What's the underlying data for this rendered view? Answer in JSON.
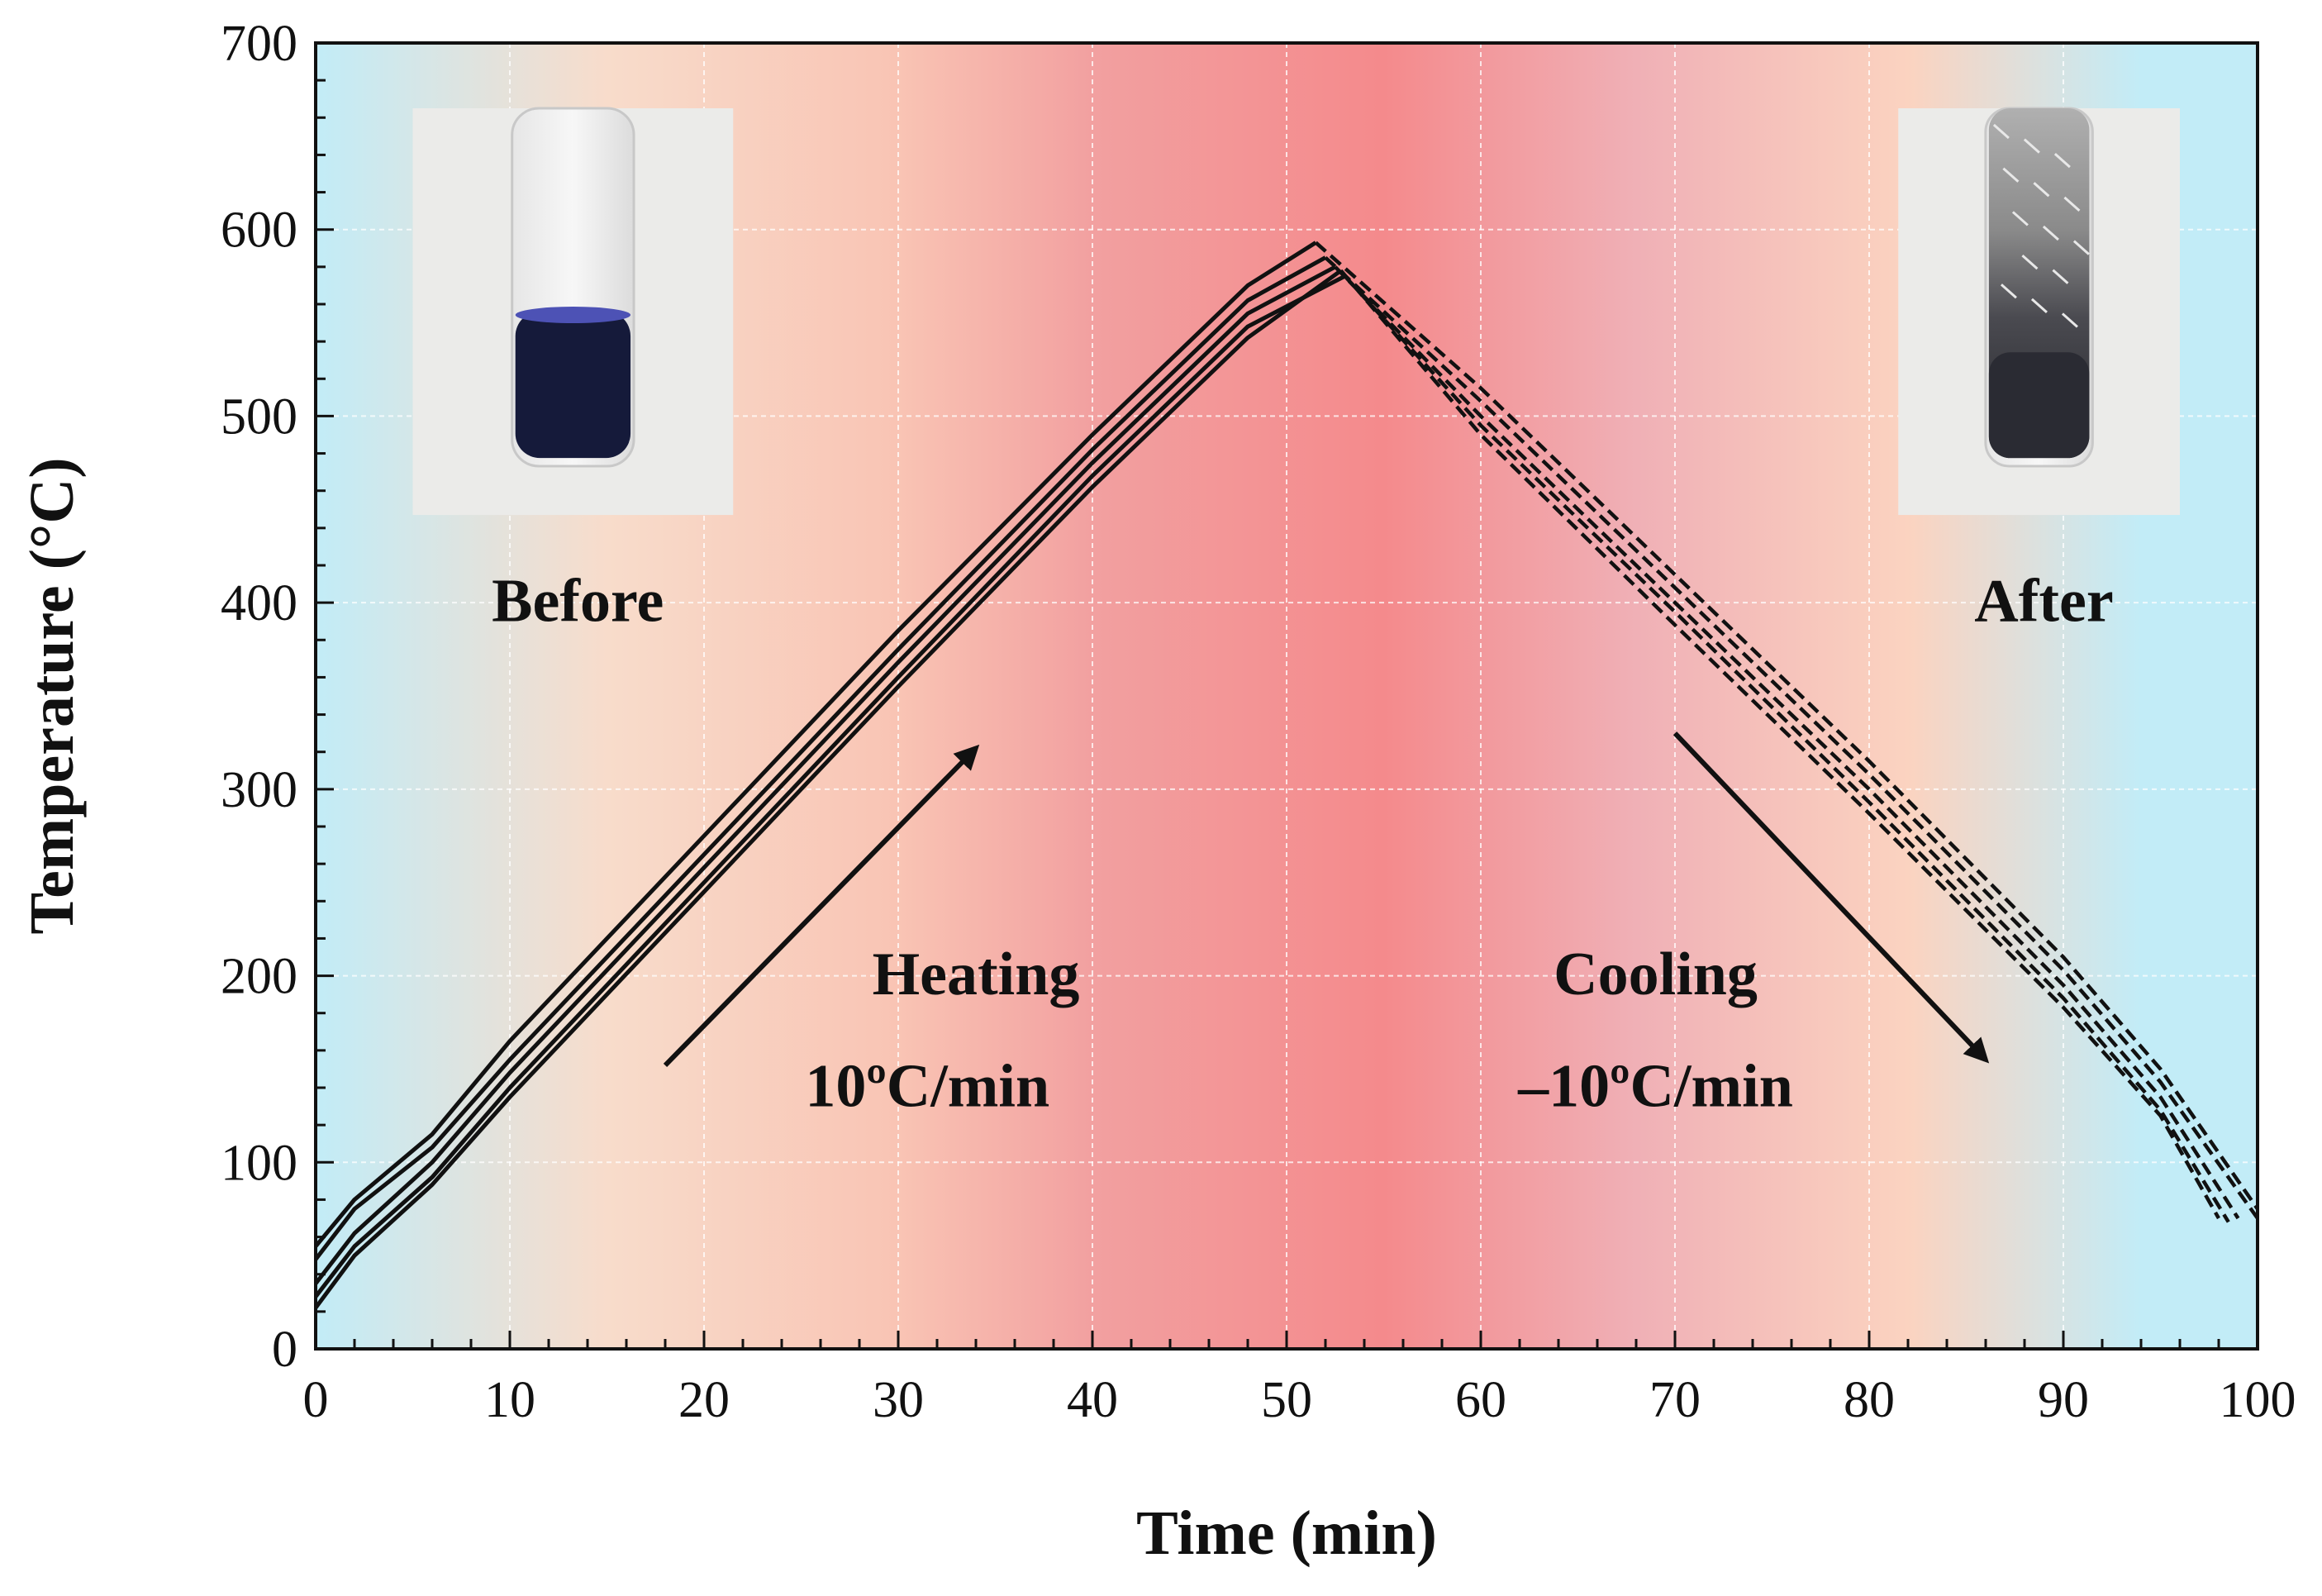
{
  "chart_data": {
    "type": "line",
    "title": "",
    "xlabel": "Time (min)",
    "ylabel": "Temperature (°C)",
    "xlim": [
      0,
      100
    ],
    "ylim": [
      0,
      700
    ],
    "xticks": [
      0,
      10,
      20,
      30,
      40,
      50,
      60,
      70,
      80,
      90,
      100
    ],
    "yticks": [
      0,
      100,
      200,
      300,
      400,
      500,
      600,
      700
    ],
    "grid": true,
    "background_colors": {
      "edge": "#c2ecf7",
      "mid": "#fcd6c4",
      "center": "#f48a8c"
    },
    "series": [
      {
        "name": "heating-1",
        "style": "solid",
        "x": [
          0,
          2,
          6,
          10,
          20,
          30,
          40,
          48,
          51.5
        ],
        "y": [
          55,
          80,
          115,
          165,
          275,
          385,
          490,
          570,
          593
        ]
      },
      {
        "name": "heating-2",
        "style": "solid",
        "x": [
          0,
          2,
          6,
          10,
          20,
          30,
          40,
          48,
          52
        ],
        "y": [
          48,
          75,
          108,
          155,
          265,
          375,
          482,
          562,
          585
        ]
      },
      {
        "name": "heating-3",
        "style": "solid",
        "x": [
          0,
          2,
          6,
          10,
          20,
          30,
          40,
          48,
          52.5
        ],
        "y": [
          35,
          62,
          100,
          148,
          258,
          368,
          475,
          555,
          580
        ]
      },
      {
        "name": "heating-4",
        "style": "solid",
        "x": [
          0,
          2,
          6,
          10,
          20,
          30,
          40,
          48,
          53
        ],
        "y": [
          28,
          55,
          92,
          140,
          250,
          360,
          468,
          548,
          575
        ]
      },
      {
        "name": "heating-5",
        "style": "solid",
        "x": [
          0,
          2,
          6,
          10,
          20,
          30,
          40,
          48,
          52.8
        ],
        "y": [
          22,
          50,
          88,
          135,
          245,
          355,
          462,
          542,
          578
        ]
      },
      {
        "name": "cooling-1",
        "style": "dashed",
        "x": [
          51.5,
          60,
          70,
          80,
          90,
          95,
          100
        ],
        "y": [
          593,
          515,
          415,
          315,
          210,
          150,
          75
        ]
      },
      {
        "name": "cooling-2",
        "style": "dashed",
        "x": [
          52,
          60,
          70,
          80,
          90,
          95,
          100
        ],
        "y": [
          585,
          508,
          408,
          308,
          203,
          143,
          70
        ]
      },
      {
        "name": "cooling-3",
        "style": "dashed",
        "x": [
          52.5,
          60,
          70,
          80,
          90,
          95,
          99
        ],
        "y": [
          580,
          500,
          400,
          300,
          195,
          135,
          70
        ]
      },
      {
        "name": "cooling-4",
        "style": "dashed",
        "x": [
          53,
          60,
          70,
          80,
          90,
          95,
          98.5
        ],
        "y": [
          575,
          495,
          395,
          293,
          188,
          128,
          68
        ]
      },
      {
        "name": "cooling-5",
        "style": "dashed",
        "x": [
          52.8,
          60,
          70,
          80,
          90,
          95,
          98
        ],
        "y": [
          578,
          490,
          388,
          287,
          183,
          125,
          70
        ]
      }
    ],
    "annotations": {
      "before_label": "Before",
      "after_label": "After",
      "heating_label": "Heating",
      "heating_rate": "10ºC/min",
      "cooling_label": "Cooling",
      "cooling_rate": "–10ºC/min"
    },
    "arrows": [
      {
        "name": "heating-arrow",
        "from": [
          18,
          152
        ],
        "to": [
          34,
          322
        ]
      },
      {
        "name": "cooling-arrow",
        "from": [
          70,
          330
        ],
        "to": [
          86,
          155
        ]
      }
    ],
    "photos": [
      {
        "name": "before-photo",
        "x_range": [
          5,
          21.5
        ],
        "y_range": [
          447,
          665
        ],
        "liquid_color": "#151a3a",
        "meniscus_color": "#4d52b5"
      },
      {
        "name": "after-photo",
        "x_range": [
          81.5,
          96
        ],
        "y_range": [
          447,
          665
        ],
        "liquid_color": "#2a2b33"
      }
    ]
  }
}
